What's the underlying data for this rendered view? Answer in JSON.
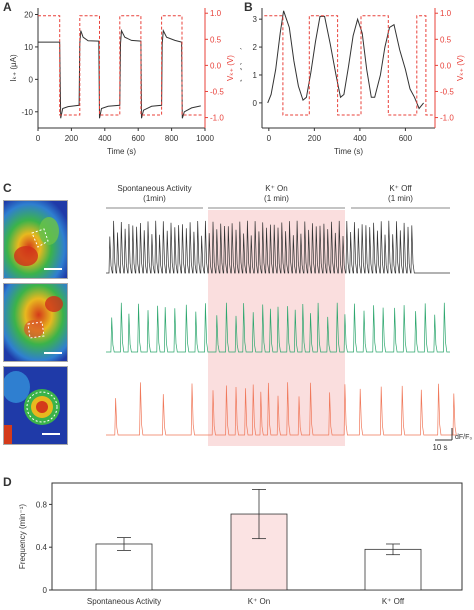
{
  "panels": {
    "a": {
      "letter": "A"
    },
    "b": {
      "letter": "B"
    },
    "c": {
      "letter": "C"
    },
    "d": {
      "letter": "D"
    }
  },
  "colors": {
    "data": "#333333",
    "red": "#e8413a",
    "green": "#2ca66d",
    "orange": "#f0785a",
    "highlight": "#fadede",
    "bar_k_on": "#fbe3e3"
  },
  "chart_data": [
    {
      "id": "A",
      "type": "line",
      "xlabel": "Time (s)",
      "ylabel_left": "Iₖ₊ (μA)",
      "ylabel_right": "Vₖ₊ (V)",
      "xlim": [
        0,
        1000
      ],
      "ylim_left": [
        -15,
        22
      ],
      "ylim_right": [
        -1.2,
        1.1
      ],
      "xticks": [
        0,
        200,
        400,
        600,
        800,
        1000
      ],
      "yticks_left": [
        -10,
        0,
        10,
        20
      ],
      "yticks_right": [
        1.0,
        0.5,
        0.0,
        -0.5,
        -1.0
      ],
      "yticklabels_right": [
        "1.0",
        "0.5",
        "0.0",
        "-0.5",
        "-1.0"
      ],
      "series": [
        {
          "axis": "left",
          "style": "solid",
          "points": [
            [
              0,
              11.5
            ],
            [
              130,
              11.5
            ],
            [
              136,
              -12
            ],
            [
              148,
              -9
            ],
            [
              180,
              -8.4
            ],
            [
              246,
              -8
            ],
            [
              250,
              11
            ],
            [
              256,
              15
            ],
            [
              270,
              13
            ],
            [
              300,
              11.9
            ],
            [
              364,
              11.8
            ],
            [
              368,
              -12
            ],
            [
              380,
              -9
            ],
            [
              420,
              -8.3
            ],
            [
              490,
              -8
            ],
            [
              494,
              11
            ],
            [
              500,
              15
            ],
            [
              520,
              13
            ],
            [
              560,
              12
            ],
            [
              616,
              11.8
            ],
            [
              620,
              -12
            ],
            [
              632,
              -9.5
            ],
            [
              680,
              -8.3
            ],
            [
              740,
              -8
            ],
            [
              744,
              11
            ],
            [
              750,
              15
            ],
            [
              770,
              13
            ],
            [
              820,
              12
            ],
            [
              860,
              11.5
            ],
            [
              864,
              -12
            ],
            [
              876,
              -10
            ],
            [
              920,
              -8.8
            ],
            [
              975,
              -8.2
            ]
          ]
        },
        {
          "axis": "right",
          "style": "dashed",
          "points": [
            [
              0,
              0.95
            ],
            [
              130,
              0.95
            ],
            [
              130,
              -0.95
            ],
            [
              250,
              -0.95
            ],
            [
              250,
              0.95
            ],
            [
              368,
              0.95
            ],
            [
              368,
              -0.95
            ],
            [
              490,
              -0.95
            ],
            [
              490,
              0.95
            ],
            [
              616,
              0.95
            ],
            [
              616,
              -0.95
            ],
            [
              740,
              -0.95
            ],
            [
              740,
              0.95
            ],
            [
              862,
              0.95
            ],
            [
              862,
              -0.95
            ],
            [
              985,
              -0.95
            ]
          ]
        }
      ]
    },
    {
      "id": "B",
      "type": "line",
      "xlabel": "Time (s)",
      "ylabel_left": "Δ [K⁺] (mM)",
      "ylabel_right": "Vₖ₊ (V)",
      "xlim": [
        -30,
        730
      ],
      "ylim_left": [
        -0.9,
        3.4
      ],
      "ylim_right": [
        -1.2,
        1.1
      ],
      "xticks": [
        0,
        200,
        400,
        600
      ],
      "yticks_left": [
        0,
        1,
        2,
        3
      ],
      "yticks_right": [
        1.0,
        0.5,
        0.0,
        -0.5,
        -1.0
      ],
      "yticklabels_right": [
        "1.0",
        "0.5",
        "0.0",
        "-0.5",
        "-1.0"
      ],
      "series": [
        {
          "axis": "left",
          "style": "solid",
          "points": [
            [
              -5,
              0
            ],
            [
              10,
              0.3
            ],
            [
              30,
              1.2
            ],
            [
              50,
              2.5
            ],
            [
              65,
              3.3
            ],
            [
              90,
              2.7
            ],
            [
              110,
              1.5
            ],
            [
              130,
              0.6
            ],
            [
              150,
              0.1
            ],
            [
              165,
              0.2
            ],
            [
              185,
              1.1
            ],
            [
              205,
              2.2
            ],
            [
              225,
              3.1
            ],
            [
              245,
              3.1
            ],
            [
              270,
              2.1
            ],
            [
              295,
              1.0
            ],
            [
              315,
              0.2
            ],
            [
              330,
              0.3
            ],
            [
              350,
              1.3
            ],
            [
              370,
              2.4
            ],
            [
              390,
              3.0
            ],
            [
              410,
              2.5
            ],
            [
              430,
              1.2
            ],
            [
              450,
              0.2
            ],
            [
              465,
              0.2
            ],
            [
              490,
              1.0
            ],
            [
              510,
              2.0
            ],
            [
              530,
              2.7
            ],
            [
              550,
              2.8
            ],
            [
              575,
              1.9
            ],
            [
              600,
              1.2
            ],
            [
              620,
              0.5
            ],
            [
              640,
              0.2
            ],
            [
              660,
              -0.2
            ],
            [
              680,
              0.0
            ]
          ]
        },
        {
          "axis": "right",
          "style": "dashed",
          "points": [
            [
              -20,
              0.95
            ],
            [
              62,
              0.95
            ],
            [
              62,
              -0.95
            ],
            [
              178,
              -0.95
            ],
            [
              178,
              0.95
            ],
            [
              302,
              0.95
            ],
            [
              302,
              -0.95
            ],
            [
              405,
              -0.95
            ],
            [
              405,
              0.95
            ],
            [
              525,
              0.95
            ],
            [
              525,
              -0.95
            ],
            [
              650,
              -0.95
            ],
            [
              650,
              0.95
            ],
            [
              690,
              0.95
            ],
            [
              690,
              -0.95
            ],
            [
              720,
              -0.95
            ]
          ]
        }
      ]
    },
    {
      "id": "D",
      "type": "bar",
      "categories": [
        "Spontaneous Activity",
        "K⁺ On",
        "K⁺ Off"
      ],
      "values": [
        0.43,
        0.71,
        0.38
      ],
      "errors": [
        0.06,
        0.23,
        0.05
      ],
      "ylabel": "Frequency (min⁻¹)",
      "ylim": [
        0,
        1.0
      ],
      "yticks": [
        0,
        0.4,
        0.8
      ],
      "yticklabels": [
        "0",
        "0.4",
        "0.8"
      ]
    }
  ],
  "panel_c": {
    "segments": [
      {
        "title": "Spontaneous Activity",
        "sub": "(1min)"
      },
      {
        "title": "K⁺ On",
        "sub": "(1 min)"
      },
      {
        "title": "K⁺ Off",
        "sub": "(1 min)"
      }
    ],
    "scale_label": "10 s",
    "dff_label": "dF/F₀",
    "traces": [
      {
        "color": "black",
        "spike_times": [
          2,
          4,
          6,
          8,
          10,
          12,
          14,
          16,
          18,
          20,
          22,
          24,
          26,
          28,
          30,
          32,
          34,
          36,
          38,
          40,
          42,
          44,
          46,
          48,
          50,
          52,
          54,
          56,
          58,
          60,
          62,
          64,
          66,
          68,
          70,
          72,
          74,
          76,
          78,
          80,
          82,
          84,
          86,
          88,
          90,
          92,
          94,
          96,
          98,
          100,
          102,
          104,
          106,
          108,
          110,
          112,
          114,
          116,
          118,
          120,
          122,
          124,
          126,
          128,
          130,
          132,
          134,
          136,
          138,
          140,
          142,
          144,
          146,
          148,
          150,
          152,
          154,
          156,
          158,
          160
        ],
        "amplitude": 0.9
      },
      {
        "color": "green",
        "spike_times": [
          3,
          8,
          12,
          17,
          22,
          27,
          31,
          36,
          42,
          47,
          52,
          58,
          63,
          68,
          72,
          77,
          82,
          86,
          90,
          95,
          99,
          103,
          107,
          111,
          116,
          121,
          125,
          130,
          135,
          140,
          145,
          151,
          156,
          162,
          167,
          172,
          177
        ],
        "amplitude": 0.85
      },
      {
        "color": "orange",
        "spike_times": [
          5,
          18,
          30,
          45,
          56,
          63,
          68,
          73,
          77,
          81,
          85,
          90,
          95,
          101,
          107,
          117,
          125,
          133,
          144,
          155,
          165,
          174,
          182
        ],
        "amplitude": 0.85
      }
    ]
  }
}
